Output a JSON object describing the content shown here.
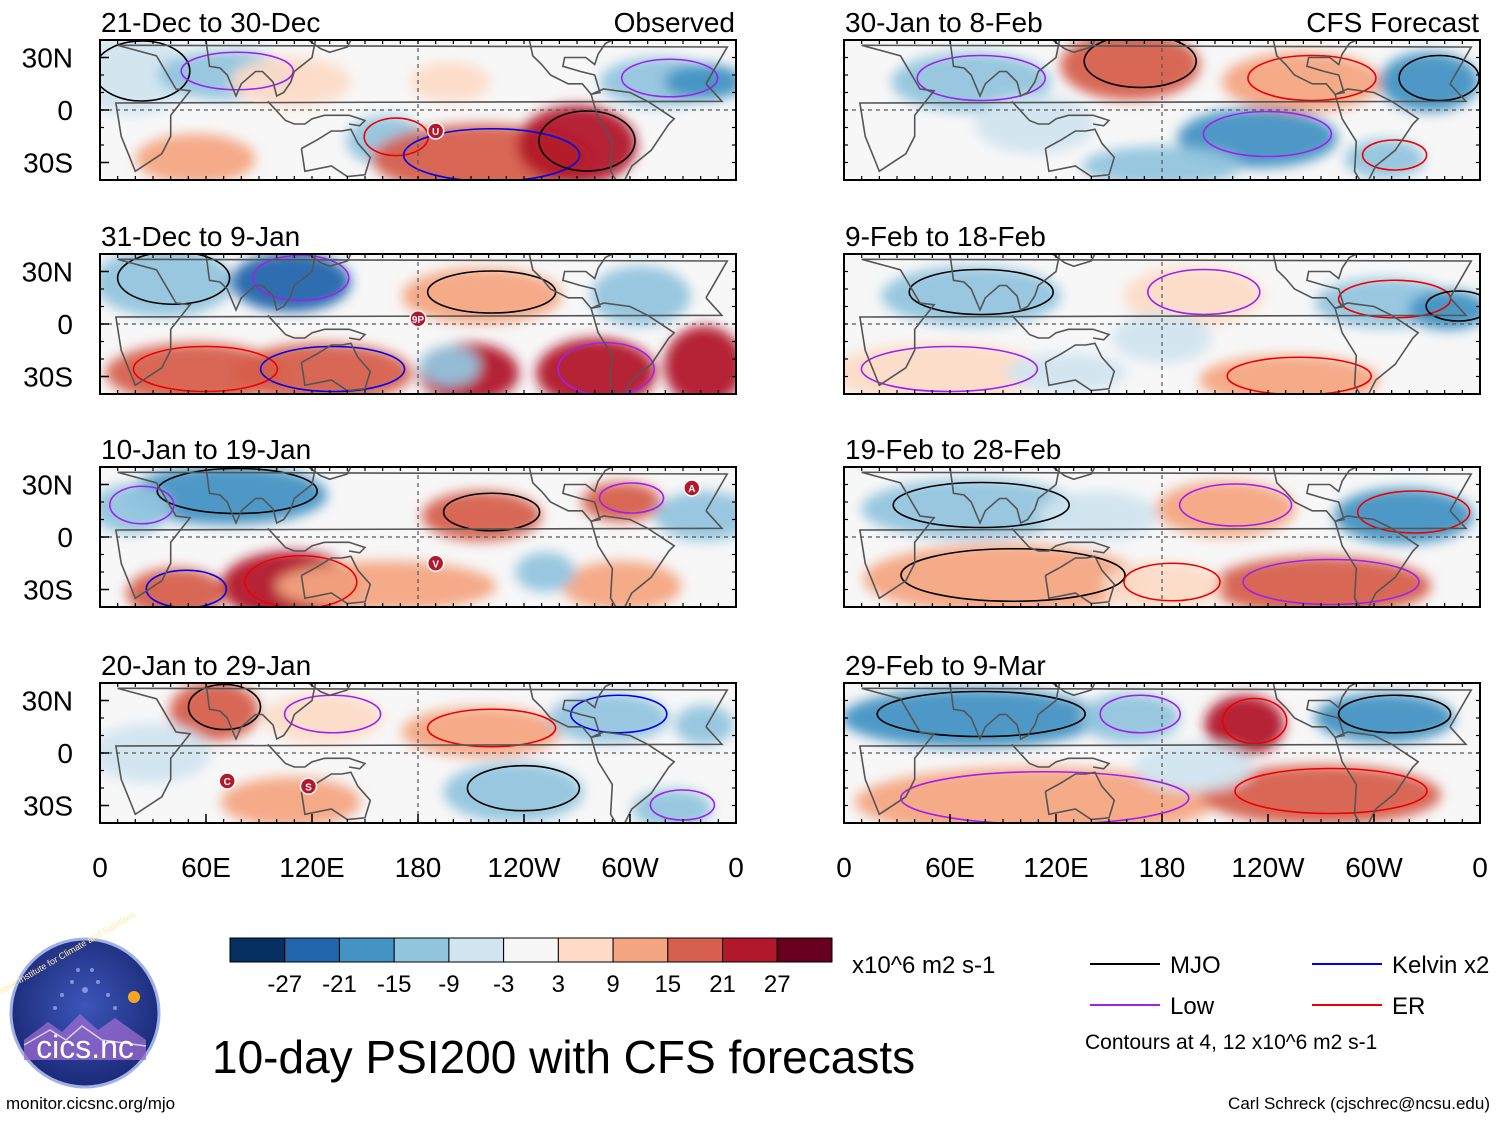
{
  "figure": {
    "title": "10-day PSI200 with CFS forecasts",
    "site": "monitor.cicsnc.org/mjo",
    "author": "Carl Schreck (cjschrec@ncsu.edu)",
    "logo_text": "cics.nc",
    "logo_ring_text": "Cooperative Institute for Climate and Satellites"
  },
  "panels_left_header": "Observed",
  "panels_right_header": "CFS Forecast",
  "panels": [
    {
      "col": 0,
      "row": 0,
      "period": "21-Dec to 30-Dec",
      "header": "Observed",
      "markers": [
        {
          "label": "U",
          "lon": 190,
          "lat": -12
        }
      ]
    },
    {
      "col": 0,
      "row": 1,
      "period": "31-Dec to 9-Jan",
      "header": "",
      "markers": [
        {
          "label": "9P",
          "lon": 180,
          "lat": 3
        }
      ]
    },
    {
      "col": 0,
      "row": 2,
      "period": "10-Jan to 19-Jan",
      "header": "",
      "markers": [
        {
          "label": "A",
          "lon": 335,
          "lat": 28
        },
        {
          "label": "V",
          "lon": 190,
          "lat": -15
        }
      ]
    },
    {
      "col": 0,
      "row": 3,
      "period": "20-Jan to 29-Jan",
      "header": "",
      "markers": [
        {
          "label": "C",
          "lon": 72,
          "lat": -16
        },
        {
          "label": "S",
          "lon": 118,
          "lat": -19
        }
      ]
    },
    {
      "col": 1,
      "row": 0,
      "period": "30-Jan to 8-Feb",
      "header": "CFS Forecast",
      "markers": []
    },
    {
      "col": 1,
      "row": 1,
      "period": "9-Feb to 18-Feb",
      "header": "",
      "markers": []
    },
    {
      "col": 1,
      "row": 2,
      "period": "19-Feb to 28-Feb",
      "header": "",
      "markers": []
    },
    {
      "col": 1,
      "row": 3,
      "period": "29-Feb to 9-Mar",
      "header": "",
      "markers": []
    }
  ],
  "axes": {
    "y_ticks": [
      {
        "label": "30N",
        "lat": 30
      },
      {
        "label": "0",
        "lat": 0
      },
      {
        "label": "30S",
        "lat": -30
      }
    ],
    "x_ticks": [
      {
        "label": "0",
        "lon": 0
      },
      {
        "label": "60E",
        "lon": 60
      },
      {
        "label": "120E",
        "lon": 120
      },
      {
        "label": "180",
        "lon": 180
      },
      {
        "label": "120W",
        "lon": 240
      },
      {
        "label": "60W",
        "lon": 300
      },
      {
        "label": "0",
        "lon": 360
      }
    ],
    "lat_range": [
      -40,
      40
    ],
    "lon_range": [
      0,
      360
    ]
  },
  "colorbar": {
    "units": "x10^6 m2 s-1",
    "labels": [
      "-27",
      "-21",
      "-15",
      "-9",
      "-3",
      "3",
      "9",
      "15",
      "21",
      "27"
    ],
    "colors": [
      "#053061",
      "#2166ac",
      "#4393c3",
      "#92c5de",
      "#d1e5f0",
      "#f7f7f7",
      "#fddbc7",
      "#f4a582",
      "#d6604d",
      "#b2182b",
      "#67001f"
    ]
  },
  "legend": {
    "items": [
      {
        "label": "MJO",
        "color": "#000000"
      },
      {
        "label": "Kelvin x2",
        "color": "#0000ee"
      },
      {
        "label": "Low",
        "color": "#a020f0"
      },
      {
        "label": "ER",
        "color": "#ee0000"
      }
    ],
    "note": "Contours at 4, 12 x10^6 m2 s-1"
  },
  "colors": {
    "land_outline": "#555555",
    "zero_line": "#555555"
  }
}
